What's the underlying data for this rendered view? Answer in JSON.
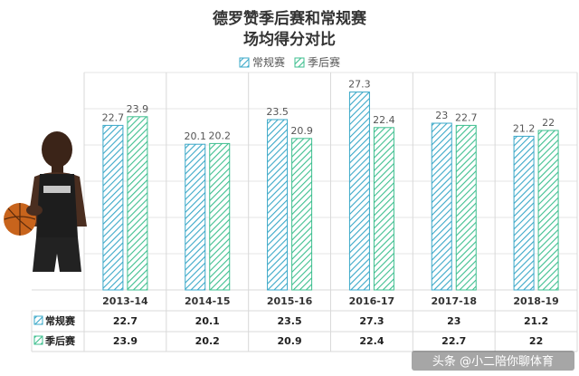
{
  "chart_data": {
    "type": "bar",
    "title": [
      "德罗赞季后赛和常规赛",
      "场均得分对比"
    ],
    "categories": [
      "2013-14",
      "2014-15",
      "2015-16",
      "2016-17",
      "2017-18",
      "2018-19"
    ],
    "series": [
      {
        "name": "常规赛",
        "values": [
          22.7,
          20.1,
          23.5,
          27.3,
          23,
          21.2
        ],
        "color": "#3aa8c8"
      },
      {
        "name": "季后赛",
        "values": [
          23.9,
          20.2,
          20.9,
          22.4,
          22.7,
          22
        ],
        "color": "#3ebf8f"
      }
    ],
    "ylim": [
      0,
      30
    ],
    "legend_position": "top-center",
    "data_table": true
  },
  "value_labels": {
    "regular": [
      "22.7",
      "20.1",
      "23.5",
      "27.3",
      "23",
      "21.2"
    ],
    "playoff": [
      "23.9",
      "20.2",
      "20.9",
      "22.4",
      "22.7",
      "22"
    ]
  },
  "legend": {
    "regular": "常规赛",
    "playoff": "季后赛"
  },
  "table": {
    "row1_label": "常规赛",
    "row2_label": "季后赛"
  },
  "watermark": "头条 @小二陪你聊体育"
}
